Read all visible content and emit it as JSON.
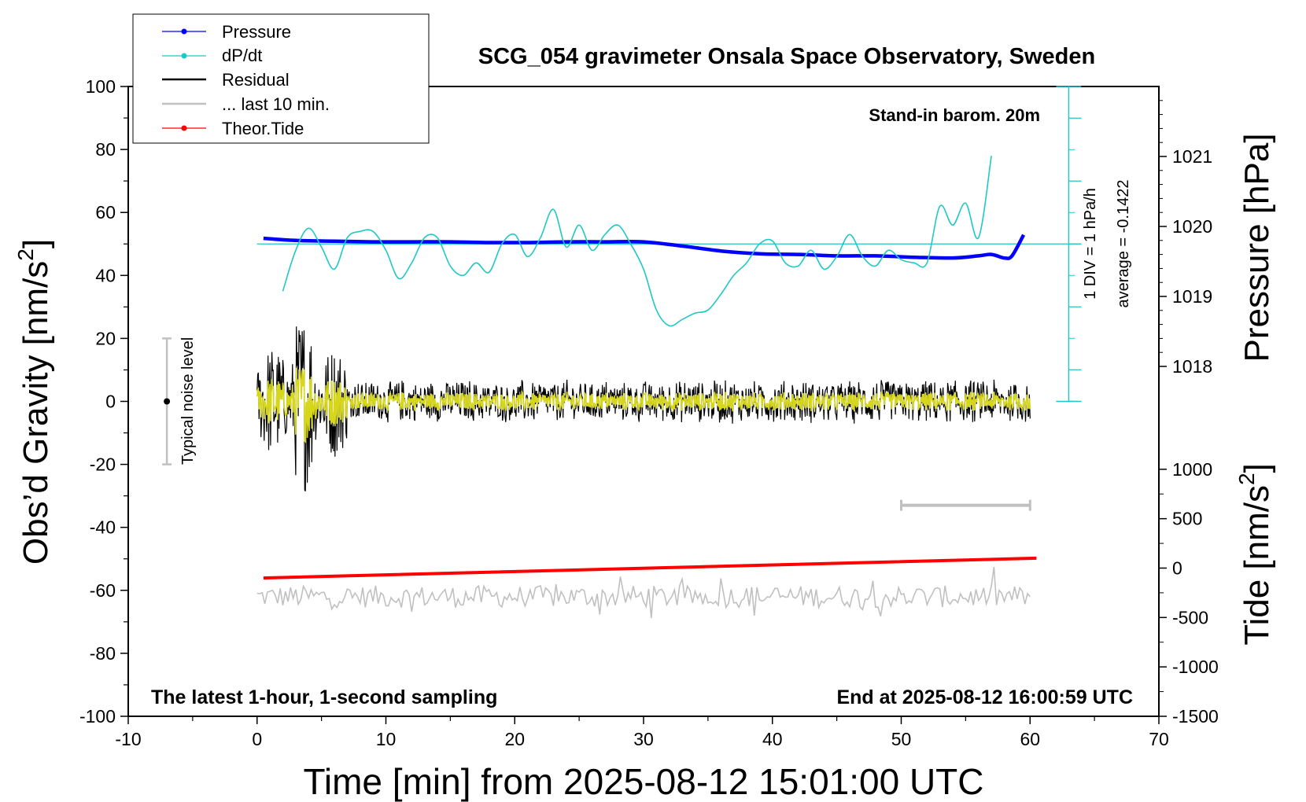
{
  "chart_data": {
    "type": "line",
    "title": "SCG_054 gravimeter Onsala Space Observatory, Sweden",
    "xlabel": "Time [min] from 2025-08-12 15:01:00 UTC",
    "ylabel_left": "Obs’d Gravity [nm/s",
    "ylabel_left_sup": "2",
    "ylabel_left_end": "]",
    "ylabel_pressure": "Pressure [hPa]",
    "ylabel_tide": "Tide [nm/s",
    "ylabel_tide_sup": "2",
    "ylabel_tide_end": "]",
    "xlim": [
      -10,
      70
    ],
    "ylim": [
      -100,
      100
    ],
    "x_ticks": [
      "-10",
      "0",
      "10",
      "20",
      "30",
      "40",
      "50",
      "60",
      "70"
    ],
    "y_ticks": [
      "-100",
      "-80",
      "-60",
      "-40",
      "-20",
      "0",
      "20",
      "40",
      "60",
      "80",
      "100"
    ],
    "pressure_ticks": [
      "1018",
      "1019",
      "1020",
      "1021"
    ],
    "tide_ticks": [
      "-1500",
      "-1000",
      "-500",
      "0",
      "500",
      "1000"
    ],
    "pressure_range": [
      1013,
      1022
    ],
    "tide_range": [
      -1500,
      1500
    ],
    "legend": {
      "placement": "top-left",
      "entries": [
        {
          "name": "Pressure",
          "color": "#0000ff"
        },
        {
          "name": "dP/dt",
          "color": "#1ec8c8"
        },
        {
          "name": "Residual",
          "color": "#000000"
        },
        {
          "name": "... last 10 min.",
          "color": "#c0c0c0"
        },
        {
          "name": "Theor.Tide",
          "color": "#ff0000"
        }
      ]
    },
    "annotations": {
      "barometer": "Stand-in barom. 20m",
      "div": "1 DIV = 1 hPa/h",
      "average": "average = -0.1422",
      "noise": "Typical noise level",
      "sampling": "The latest 1-hour, 1-second sampling",
      "end": "End at 2025-08-12 16:00:59 UTC"
    },
    "series": [
      {
        "name": "Pressure",
        "color": "#0000ff",
        "axis": "pressure",
        "x": [
          0.5,
          3,
          6,
          9,
          12,
          15,
          18,
          21,
          24,
          27,
          30,
          33,
          36,
          39,
          42,
          45,
          48,
          51,
          54,
          56,
          57,
          58,
          58.6,
          59.5
        ],
        "values": [
          1019.83,
          1019.8,
          1019.79,
          1019.78,
          1019.78,
          1019.78,
          1019.77,
          1019.77,
          1019.78,
          1019.78,
          1019.78,
          1019.72,
          1019.65,
          1019.61,
          1019.6,
          1019.58,
          1019.58,
          1019.56,
          1019.55,
          1019.58,
          1019.6,
          1019.55,
          1019.58,
          1019.88
        ]
      },
      {
        "name": "dP/dt",
        "color": "#1ec8c8",
        "axis": "rate",
        "x": [
          2,
          3,
          4,
          5,
          6,
          7,
          8,
          9,
          10,
          11,
          12,
          13,
          14,
          15,
          16,
          17,
          18,
          19,
          20,
          21,
          22,
          23,
          24,
          25,
          26,
          27,
          28,
          29,
          30,
          31,
          32,
          33,
          34,
          35,
          36,
          37,
          38,
          39,
          40,
          41,
          42,
          43,
          44,
          45,
          46,
          47,
          48,
          49,
          50,
          51,
          52,
          53,
          54,
          55,
          56,
          57
        ],
        "values": [
          -0.75,
          -0.1,
          0.25,
          -0.05,
          -0.4,
          0.1,
          0.2,
          0.2,
          -0.1,
          -0.55,
          -0.3,
          0.1,
          0.1,
          -0.35,
          -0.5,
          -0.3,
          -0.45,
          0.0,
          0.15,
          -0.2,
          0.1,
          0.55,
          -0.05,
          0.3,
          -0.1,
          0.15,
          0.3,
          0.0,
          -0.4,
          -1.05,
          -1.3,
          -1.2,
          -1.1,
          -1.05,
          -0.8,
          -0.5,
          -0.3,
          0.0,
          0.05,
          -0.3,
          -0.35,
          -0.1,
          -0.4,
          -0.2,
          0.15,
          -0.2,
          -0.35,
          -0.1,
          -0.25,
          -0.3,
          -0.3,
          0.6,
          0.3,
          0.65,
          0.1,
          1.4
        ]
      },
      {
        "name": "Theor.Tide",
        "color": "#ff0000",
        "axis": "tide",
        "x": [
          0.5,
          60.5
        ],
        "values": [
          -100,
          100
        ]
      }
    ],
    "residual": {
      "x_start": 0,
      "x_end": 60,
      "amp_early": 18,
      "amp_late": 6
    },
    "last10": {
      "x_start": 0,
      "x_end": 60,
      "level": -62,
      "amp": 3.5
    },
    "noise_bar": {
      "x": -7,
      "low": -20,
      "high": 20
    },
    "div_axis": {
      "x": 63,
      "zero_rate_y": 50,
      "per_div": 1
    }
  }
}
